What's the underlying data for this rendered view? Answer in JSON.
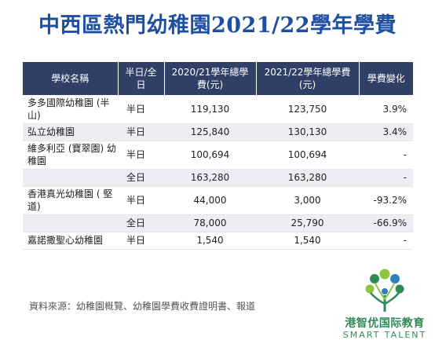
{
  "title": "中西區熱門幼稚園2021/22學年學費",
  "table": {
    "headers": {
      "school": "學校名稱",
      "type": "半日/全日",
      "fee_2020": "2020/21學年總學費(元)",
      "fee_2021": "2021/22學年總學費(元)",
      "change": "學費變化"
    },
    "rows": [
      {
        "school": "多多國際幼稚園 (半山)",
        "type": "半日",
        "fee_2020": "119,130",
        "fee_2021": "123,750",
        "change": "3.9%"
      },
      {
        "school": "弘立幼稚園",
        "type": "半日",
        "fee_2020": "125,840",
        "fee_2021": "130,130",
        "change": "3.4%"
      },
      {
        "school": "維多利亞 (寶翠園) 幼稚園",
        "type": "半日",
        "fee_2020": "100,694",
        "fee_2021": "100,694",
        "change": "-"
      },
      {
        "school": "",
        "type": "全日",
        "fee_2020": "163,280",
        "fee_2021": "163,280",
        "change": "-"
      },
      {
        "school": "香港真光幼稚園 ( 堅道)",
        "type": "半日",
        "fee_2020": "44,000",
        "fee_2021": "3,000",
        "change": "-93.2%"
      },
      {
        "school": "",
        "type": "全日",
        "fee_2020": "78,000",
        "fee_2021": "25,790",
        "change": "-66.9%"
      },
      {
        "school": "嘉諾撒聖心幼稚園",
        "type": "半日",
        "fee_2020": "1,540",
        "fee_2021": "1,540",
        "change": "-"
      }
    ]
  },
  "source": "資料來源：幼稚園概覽、幼稚園學費收費證明書、報道",
  "logo": {
    "cn": "港智优国际教育",
    "en": "SMART TALENT",
    "icon": "tree-people-icon",
    "colors": {
      "green": "#2e8b57",
      "light_green": "#8cc63f",
      "blue": "#2f7fc1"
    }
  },
  "colors": {
    "title": "#1f4fa3",
    "header_bg": "#2f3f66",
    "alt_row": "#eceef1"
  }
}
